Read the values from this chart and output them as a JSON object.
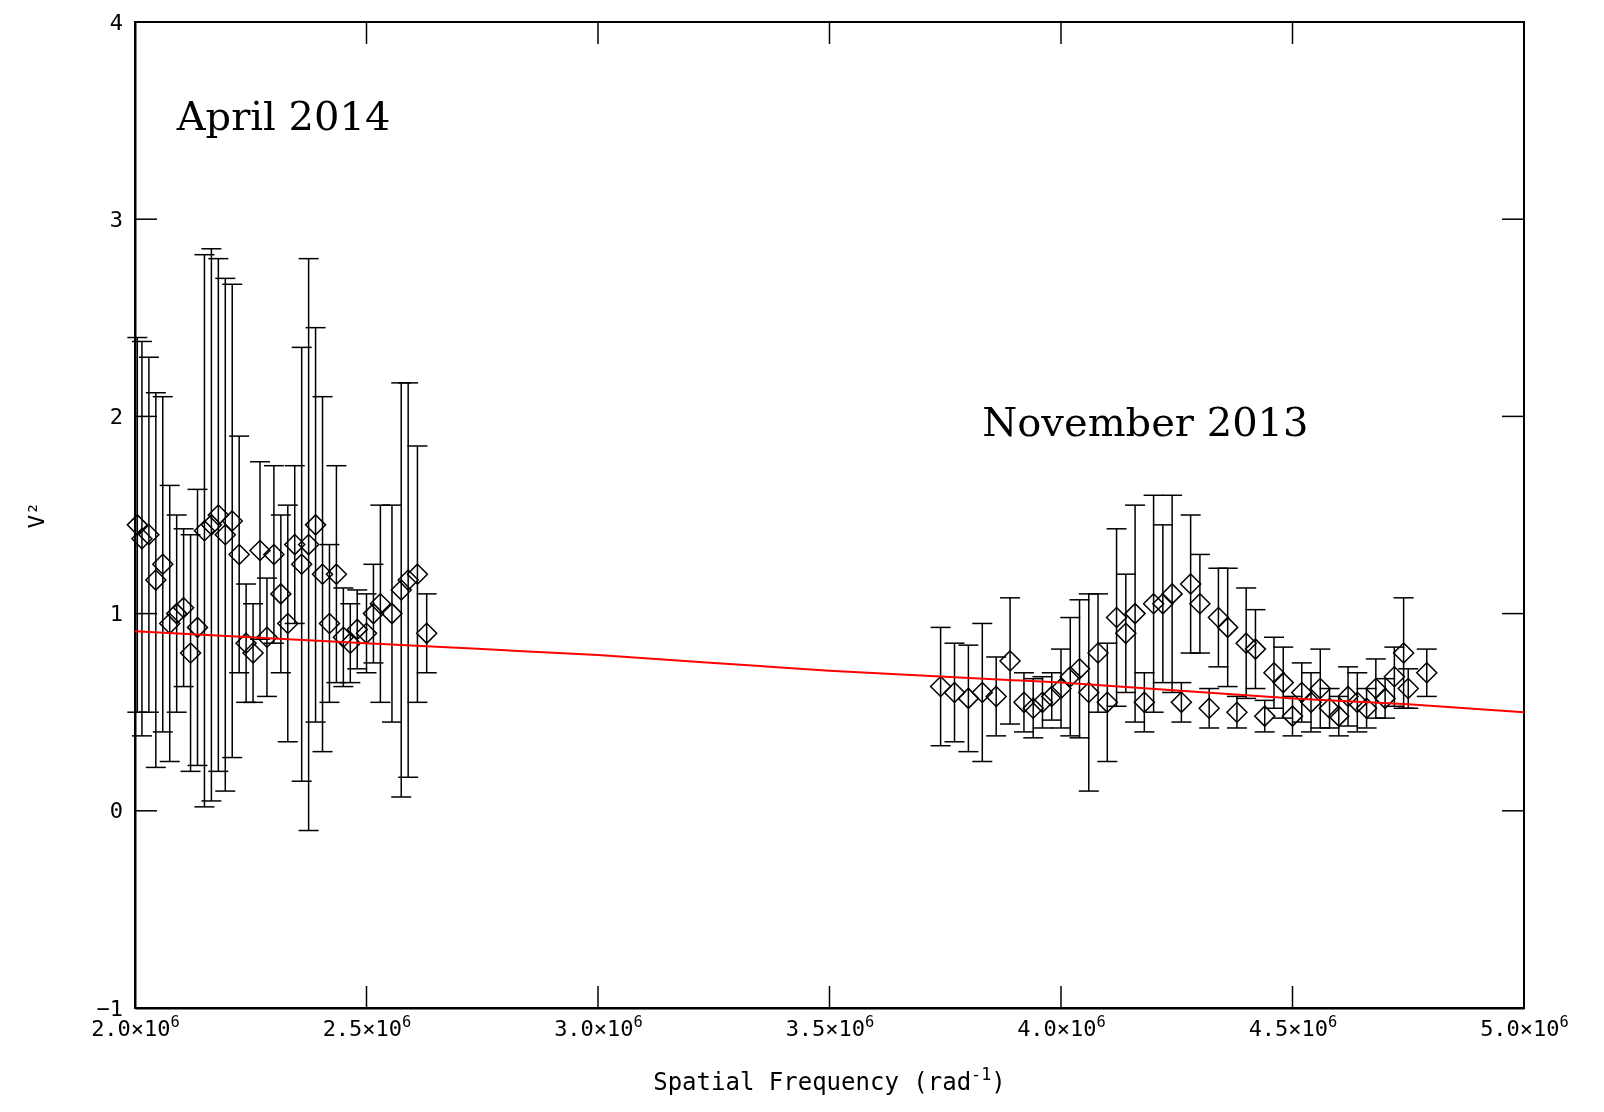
{
  "chart_data": {
    "type": "scatter",
    "xlabel": "Spatial Frequency (rad$^{-1}$)",
    "ylabel": "V²",
    "xlim": [
      2000000,
      5000000
    ],
    "ylim": [
      -1,
      4
    ],
    "xticks": [
      {
        "value": 2000000,
        "label": "2.0×10$^{6}$"
      },
      {
        "value": 2500000,
        "label": "2.5×10$^{6}$"
      },
      {
        "value": 3000000,
        "label": "3.0×10$^{6}$"
      },
      {
        "value": 3500000,
        "label": "3.5×10$^{6}$"
      },
      {
        "value": 4000000,
        "label": "4.0×10$^{6}$"
      },
      {
        "value": 4500000,
        "label": "4.5×10$^{6}$"
      },
      {
        "value": 5000000,
        "label": "5.0×10$^{6}$"
      }
    ],
    "yticks": [
      {
        "value": -1,
        "label": "−1"
      },
      0,
      1,
      2,
      3,
      4
    ],
    "annotations": [
      "April 2014",
      "November 2013"
    ],
    "marker": "diamond",
    "grid": false,
    "series": [
      {
        "color": "#000000",
        "x": [
          2005000,
          2015000,
          2030000,
          2045000,
          2060000,
          2075000,
          2090000,
          2105000,
          2120000,
          2135000,
          2150000,
          2165000,
          2180000,
          2195000,
          2210000,
          2225000,
          2240000,
          2255000,
          2270000,
          2285000,
          2300000,
          2315000,
          2330000,
          2345000,
          2360000,
          2375000,
          2390000,
          2405000,
          2420000,
          2435000,
          2450000,
          2465000,
          2480000,
          2500000,
          2515000,
          2530000,
          2555000,
          2575000,
          2590000,
          2610000,
          2630000,
          3740000,
          3770000,
          3800000,
          3830000,
          3860000,
          3890000,
          3920000,
          3940000,
          3960000,
          3980000,
          4000000,
          4020000,
          4040000,
          4060000,
          4080000,
          4100000,
          4120000,
          4140000,
          4160000,
          4180000,
          4200000,
          4220000,
          4240000,
          4260000,
          4280000,
          4300000,
          4320000,
          4340000,
          4360000,
          4380000,
          4400000,
          4420000,
          4440000,
          4460000,
          4480000,
          4500000,
          4520000,
          4540000,
          4560000,
          4580000,
          4600000,
          4620000,
          4640000,
          4660000,
          4680000,
          4700000,
          4720000,
          4740000,
          4750000,
          4790000
        ],
        "values": [
          1.45,
          1.38,
          1.4,
          1.17,
          1.25,
          0.95,
          1.0,
          1.03,
          0.8,
          0.93,
          1.42,
          1.45,
          1.5,
          1.4,
          1.47,
          1.3,
          0.85,
          0.8,
          1.32,
          0.88,
          1.3,
          1.1,
          0.95,
          1.35,
          1.25,
          1.35,
          1.45,
          1.2,
          0.95,
          1.2,
          0.88,
          0.85,
          0.92,
          0.9,
          1.0,
          1.05,
          1.0,
          1.12,
          1.17,
          1.2,
          0.9,
          0.63,
          0.6,
          0.57,
          0.6,
          0.58,
          0.76,
          0.55,
          0.52,
          0.55,
          0.58,
          0.62,
          0.68,
          0.72,
          0.6,
          0.8,
          0.55,
          0.98,
          0.9,
          1.0,
          0.55,
          1.05,
          1.05,
          1.1,
          0.55,
          1.15,
          1.05,
          0.52,
          0.98,
          0.93,
          0.5,
          0.85,
          0.82,
          0.48,
          0.7,
          0.65,
          0.48,
          0.6,
          0.55,
          0.62,
          0.52,
          0.48,
          0.58,
          0.55,
          0.52,
          0.62,
          0.57,
          0.68,
          0.8,
          0.62,
          0.7
        ],
        "errors": [
          0.95,
          1.0,
          0.9,
          0.95,
          0.85,
          0.7,
          0.5,
          0.4,
          0.6,
          0.7,
          1.4,
          1.4,
          1.3,
          1.3,
          1.2,
          0.6,
          0.3,
          0.25,
          0.45,
          0.3,
          0.45,
          0.4,
          0.6,
          0.4,
          1.1,
          1.45,
          1.0,
          0.9,
          0.4,
          0.55,
          0.25,
          0.2,
          0.2,
          0.2,
          0.25,
          0.5,
          0.55,
          1.05,
          1.0,
          0.65,
          0.2,
          0.3,
          0.25,
          0.27,
          0.35,
          0.2,
          0.32,
          0.15,
          0.15,
          0.13,
          0.12,
          0.2,
          0.3,
          0.35,
          0.5,
          0.3,
          0.3,
          0.45,
          0.3,
          0.55,
          0.15,
          0.55,
          0.4,
          0.5,
          0.1,
          0.35,
          0.25,
          0.1,
          0.25,
          0.3,
          0.08,
          0.28,
          0.2,
          0.08,
          0.18,
          0.18,
          0.1,
          0.15,
          0.15,
          0.2,
          0.1,
          0.1,
          0.15,
          0.15,
          0.1,
          0.15,
          0.1,
          0.15,
          0.28,
          0.1,
          0.12
        ]
      },
      {
        "type": "line",
        "color": "#ff0000",
        "marker": "none",
        "line_style": "solid",
        "x": [
          2000000,
          2250000,
          2500000,
          2750000,
          3000000,
          3250000,
          3500000,
          3750000,
          4000000,
          4250000,
          4500000,
          4750000,
          5000000
        ],
        "values": [
          0.91,
          0.88,
          0.85,
          0.82,
          0.79,
          0.75,
          0.71,
          0.68,
          0.65,
          0.61,
          0.57,
          0.54,
          0.5
        ]
      }
    ]
  }
}
